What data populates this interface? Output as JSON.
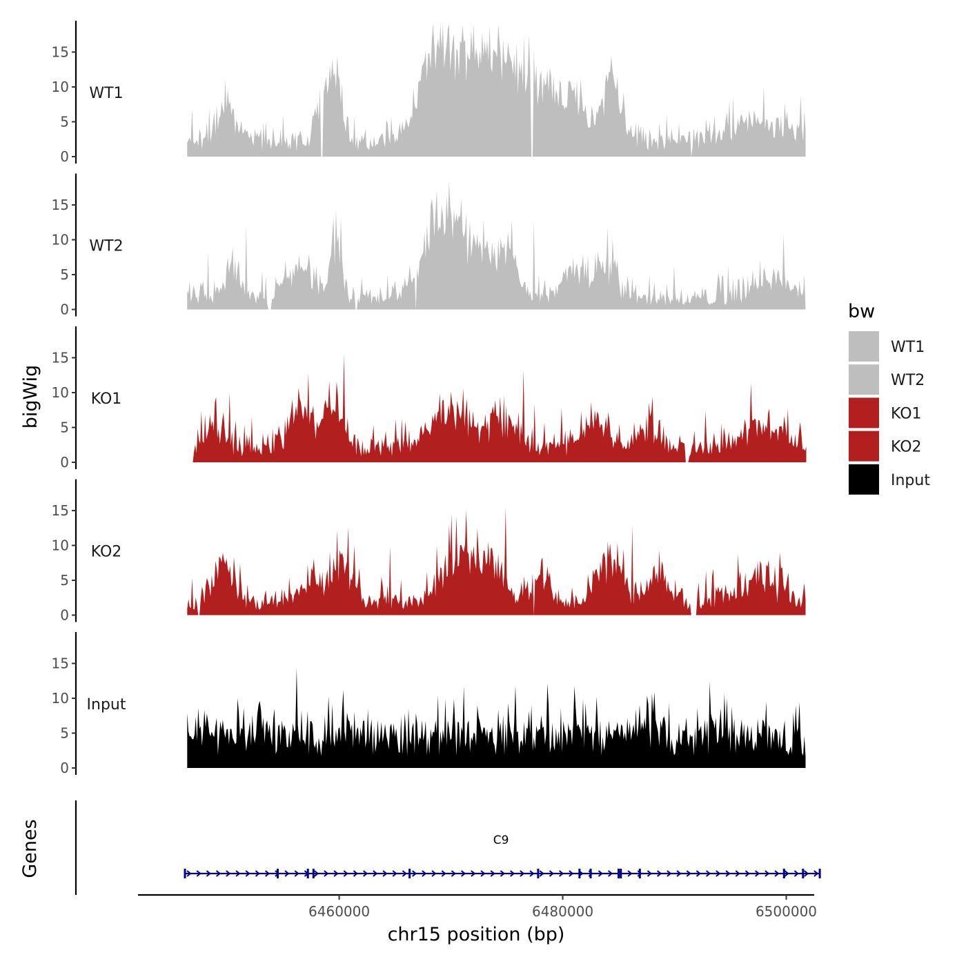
{
  "chart_data": {
    "type": "area",
    "y_title": "bigWig",
    "x_title": "chr15 position (bp)",
    "gene_track_title": "Genes",
    "xlim": [
      6442000,
      6502500
    ],
    "ylim": [
      0,
      19.5
    ],
    "y_ticks": [
      0,
      5,
      10,
      15
    ],
    "x_ticks": [
      6460000,
      6480000,
      6500000
    ],
    "x_tick_labels": [
      "6460000",
      "6480000",
      "6500000"
    ],
    "legend": {
      "title": "bw",
      "position": "right",
      "entries": [
        "WT1",
        "WT2",
        "KO1",
        "KO2",
        "Input"
      ]
    },
    "tracks": [
      {
        "name": "WT1",
        "label": "WT1",
        "color": "#bebebe",
        "seed": 11,
        "range": [
          6446400,
          6501800
        ],
        "base": 2.2,
        "noise": 3.2,
        "peaks": [
          [
            6450000,
            5,
            800
          ],
          [
            6458800,
            7,
            700
          ],
          [
            6459800,
            8,
            400
          ],
          [
            6468500,
            9,
            1400
          ],
          [
            6471500,
            9,
            2500
          ],
          [
            6474200,
            6,
            1500
          ],
          [
            6477500,
            8,
            1500
          ],
          [
            6481000,
            6,
            1200
          ],
          [
            6484400,
            8,
            900
          ],
          [
            6497500,
            3,
            2500
          ]
        ],
        "spikes": [
          [
            6448400,
            7
          ],
          [
            6450000,
            9.7
          ],
          [
            6458800,
            11.5
          ],
          [
            6459800,
            14.5
          ],
          [
            6468500,
            16.2
          ],
          [
            6470500,
            15.5
          ],
          [
            6471500,
            15
          ],
          [
            6472000,
            19
          ],
          [
            6474300,
            16.6
          ],
          [
            6476800,
            10.1
          ],
          [
            6478800,
            12.8
          ],
          [
            6484400,
            14.4
          ],
          [
            6498000,
            10.1
          ],
          [
            6501600,
            6.5
          ]
        ],
        "zeros": [
          [
            6458300,
            6458500
          ],
          [
            6477200,
            6477400
          ],
          [
            6491400,
            6491600
          ]
        ]
      },
      {
        "name": "WT2",
        "label": "WT2",
        "color": "#bebebe",
        "seed": 23,
        "range": [
          6446400,
          6501800
        ],
        "base": 1.6,
        "noise": 3.0,
        "peaks": [
          [
            6450500,
            4,
            800
          ],
          [
            6456500,
            5,
            1200
          ],
          [
            6459700,
            9,
            500
          ],
          [
            6468800,
            8,
            1500
          ],
          [
            6471500,
            7,
            2000
          ],
          [
            6474800,
            5,
            1200
          ],
          [
            6481000,
            4,
            1000
          ],
          [
            6484000,
            5,
            800
          ],
          [
            6499000,
            3,
            1500
          ]
        ],
        "spikes": [
          [
            6451700,
            11.9
          ],
          [
            6459700,
            14.2
          ],
          [
            6460100,
            13.1
          ],
          [
            6468600,
            14
          ],
          [
            6469100,
            11.5
          ],
          [
            6472400,
            10.8
          ],
          [
            6477400,
            12.8
          ],
          [
            6484500,
            10.3
          ],
          [
            6499700,
            10.9
          ]
        ],
        "zeros": [
          [
            6453600,
            6453900
          ],
          [
            6461400,
            6461600
          ],
          [
            6466800,
            6466900
          ],
          [
            6501700,
            6501800
          ]
        ]
      },
      {
        "name": "KO1",
        "label": "KO1",
        "color": "#b21f1f",
        "seed": 37,
        "range": [
          6446900,
          6501800
        ],
        "base": 2.2,
        "noise": 3.2,
        "peaks": [
          [
            6448700,
            3,
            700
          ],
          [
            6456600,
            5,
            1000
          ],
          [
            6459500,
            7,
            800
          ],
          [
            6470000,
            5,
            1800
          ],
          [
            6474800,
            4,
            1200
          ],
          [
            6483000,
            4,
            1000
          ],
          [
            6487500,
            3,
            800
          ],
          [
            6498000,
            3,
            2000
          ]
        ],
        "spikes": [
          [
            6450200,
            10
          ],
          [
            6456400,
            10.7
          ],
          [
            6457200,
            12.8
          ],
          [
            6460400,
            15.4
          ],
          [
            6469000,
            9.9
          ],
          [
            6474700,
            9.6
          ],
          [
            6476500,
            13.3
          ],
          [
            6479900,
            7.8
          ],
          [
            6487700,
            8.6
          ]
        ],
        "zeros": [
          [
            6446400,
            6446900
          ],
          [
            6491000,
            6491300
          ]
        ]
      },
      {
        "name": "KO2",
        "label": "KO2",
        "color": "#b21f1f",
        "seed": 53,
        "range": [
          6446400,
          6501800
        ],
        "base": 2.0,
        "noise": 3.0,
        "peaks": [
          [
            6449600,
            5,
            900
          ],
          [
            6457600,
            3,
            1000
          ],
          [
            6460300,
            6,
            900
          ],
          [
            6470700,
            7,
            1400
          ],
          [
            6473800,
            5,
            1000
          ],
          [
            6477900,
            3,
            900
          ],
          [
            6484000,
            6,
            1000
          ],
          [
            6488500,
            3,
            1000
          ],
          [
            6497500,
            3,
            1800
          ]
        ],
        "spikes": [
          [
            6450600,
            8.3
          ],
          [
            6459800,
            12.2
          ],
          [
            6460800,
            12.6
          ],
          [
            6464500,
            9.9
          ],
          [
            6468700,
            10
          ],
          [
            6471400,
            15
          ],
          [
            6474900,
            15.4
          ],
          [
            6478200,
            8.3
          ],
          [
            6486200,
            12.8
          ],
          [
            6499400,
            9
          ]
        ],
        "zeros": [
          [
            6447300,
            6447600
          ],
          [
            6477400,
            6477500
          ],
          [
            6491500,
            6492000
          ]
        ]
      },
      {
        "name": "Input",
        "label": "Input",
        "color": "#000000",
        "seed": 71,
        "range": [
          6446400,
          6501800
        ],
        "base": 4.8,
        "noise": 3.6,
        "peaks": [
          [
            6452700,
            2,
            700
          ],
          [
            6460700,
            2,
            600
          ],
          [
            6487300,
            2,
            1000
          ]
        ],
        "spikes": [
          [
            6447400,
            8.6
          ],
          [
            6450900,
            10
          ],
          [
            6456200,
            14.4
          ],
          [
            6459100,
            10.3
          ],
          [
            6460400,
            11.2
          ],
          [
            6469500,
            9.9
          ],
          [
            6475800,
            11.8
          ],
          [
            6487700,
            9.2
          ],
          [
            6494500,
            10.7
          ]
        ],
        "zeros": []
      }
    ],
    "gene": {
      "name": "C9",
      "start": 6446200,
      "end": 6503000,
      "strand": "+",
      "color": "#00008b",
      "exons": [
        6446200,
        6454500,
        6457200,
        6457700,
        6466300,
        6477800,
        6481500,
        6482500,
        6485000,
        6485200,
        6486900,
        6499800,
        6501500,
        6503000
      ]
    }
  }
}
